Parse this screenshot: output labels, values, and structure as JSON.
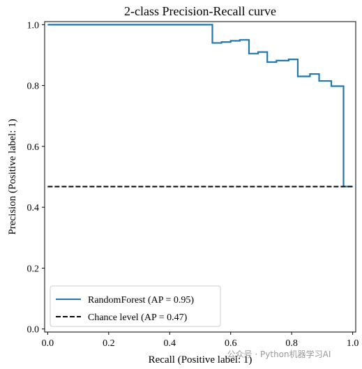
{
  "chart_data": {
    "type": "line",
    "title": "2-class Precision-Recall curve",
    "xlabel": "Recall (Positive label: 1)",
    "ylabel": "Precision (Positive label: 1)",
    "xlim": [
      -0.01,
      1.01
    ],
    "ylim": [
      -0.01,
      1.01
    ],
    "xticks": [
      "0.0",
      "0.2",
      "0.4",
      "0.6",
      "0.8",
      "1.0"
    ],
    "yticks": [
      "0.0",
      "0.2",
      "0.4",
      "0.6",
      "0.8",
      "1.0"
    ],
    "grid": false,
    "legend_position": "lower-left",
    "series": [
      {
        "name": "RandomForest (AP = 0.95)",
        "color": "#1f77b4",
        "style": "solid",
        "drawstyle": "steps",
        "points": [
          [
            0.0,
            1.0
          ],
          [
            0.54,
            1.0
          ],
          [
            0.54,
            0.94
          ],
          [
            0.57,
            0.94
          ],
          [
            0.57,
            0.943
          ],
          [
            0.6,
            0.943
          ],
          [
            0.6,
            0.947
          ],
          [
            0.63,
            0.947
          ],
          [
            0.63,
            0.95
          ],
          [
            0.66,
            0.95
          ],
          [
            0.66,
            0.905
          ],
          [
            0.69,
            0.905
          ],
          [
            0.69,
            0.91
          ],
          [
            0.72,
            0.91
          ],
          [
            0.72,
            0.877
          ],
          [
            0.75,
            0.877
          ],
          [
            0.75,
            0.882
          ],
          [
            0.79,
            0.882
          ],
          [
            0.79,
            0.886
          ],
          [
            0.82,
            0.886
          ],
          [
            0.82,
            0.83
          ],
          [
            0.86,
            0.83
          ],
          [
            0.86,
            0.838
          ],
          [
            0.89,
            0.838
          ],
          [
            0.89,
            0.815
          ],
          [
            0.93,
            0.815
          ],
          [
            0.93,
            0.798
          ],
          [
            0.97,
            0.798
          ],
          [
            0.97,
            0.468
          ],
          [
            1.0,
            0.468
          ]
        ]
      },
      {
        "name": "Chance level (AP = 0.47)",
        "color": "#000000",
        "style": "dashed",
        "points": [
          [
            0.0,
            0.468
          ],
          [
            1.0,
            0.468
          ]
        ]
      }
    ]
  },
  "watermark": "公众号 · Python机器学习AI"
}
